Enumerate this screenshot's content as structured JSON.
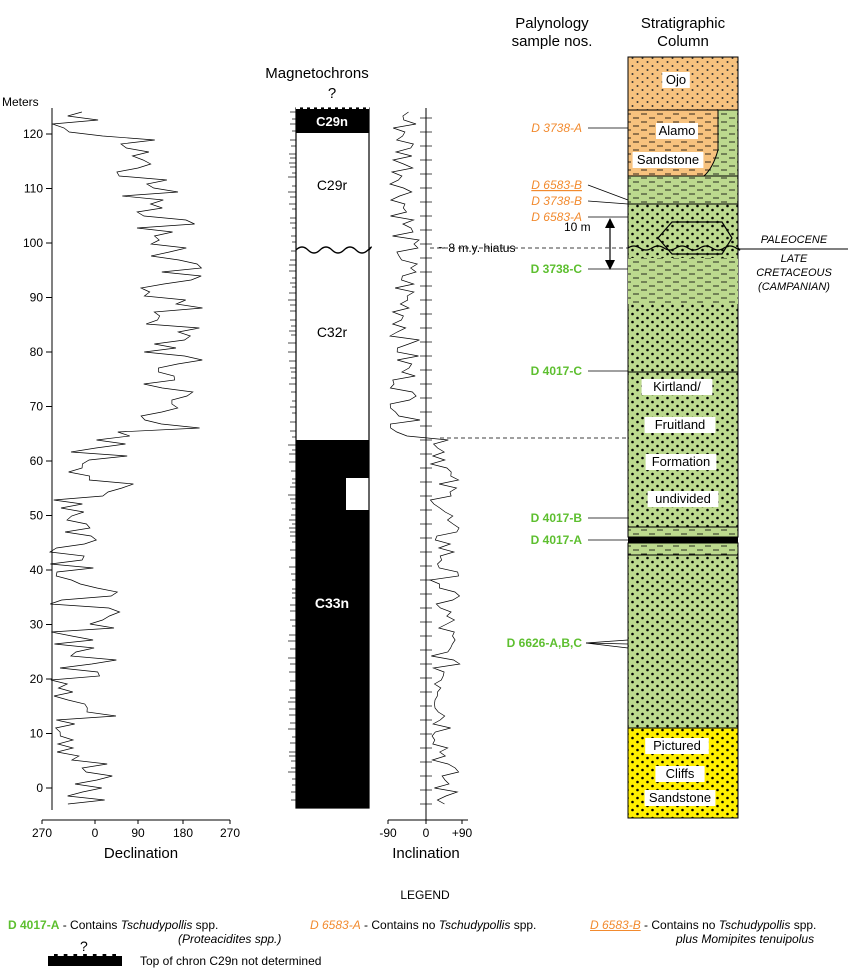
{
  "axis": {
    "meters_label": "Meters",
    "meter_ticks": [
      "120",
      "110",
      "100",
      "90",
      "80",
      "70",
      "60",
      "50",
      "40",
      "30",
      "20",
      "10",
      "0"
    ]
  },
  "declination": {
    "label": "Declination",
    "ticks": [
      "270",
      "0",
      "90",
      "180",
      "270"
    ]
  },
  "inclination": {
    "label": "Inclination",
    "ticks": [
      "-90",
      "0",
      "+90"
    ]
  },
  "magnetochrons": {
    "title": "Magnetochrons",
    "question": "?",
    "chrons": [
      {
        "name": "C29n",
        "polarity": "normal"
      },
      {
        "name": "C29r",
        "polarity": "reversed"
      },
      {
        "name": "C32r",
        "polarity": "reversed"
      },
      {
        "name": "C33n",
        "polarity": "normal"
      }
    ]
  },
  "palynology": {
    "title_line1": "Palynology",
    "title_line2": "sample nos.",
    "samples": [
      {
        "id": "D 3738-A",
        "style": "orange"
      },
      {
        "id": "D 6583-B",
        "style": "orange-underline"
      },
      {
        "id": "D 3738-B",
        "style": "orange"
      },
      {
        "id": "D 6583-A",
        "style": "orange"
      },
      {
        "id": "D 3738-C",
        "style": "green"
      },
      {
        "id": "D 4017-C",
        "style": "green"
      },
      {
        "id": "D 4017-B",
        "style": "green"
      },
      {
        "id": "D 4017-A",
        "style": "green"
      },
      {
        "id": "D 6626-A,B,C",
        "style": "green"
      }
    ]
  },
  "column": {
    "title_line1": "Stratigraphic",
    "title_line2": "Column",
    "units": [
      "Ojo",
      "Alamo",
      "Sandstone",
      "Kirtland/",
      "Fruitland",
      "Formation",
      "undivided",
      "Pictured",
      "Cliffs",
      "Sandstone"
    ]
  },
  "annotations": {
    "ten_m": "10 m",
    "hiatus": "~ 8 m.y. hiatus",
    "paleocene": "PALEOCENE",
    "late": "LATE",
    "cretaceous": "CRETACEOUS",
    "campanian": "(CAMPANIAN)"
  },
  "colors": {
    "green_unit": "#bcd98e",
    "orange_unit": "#f7c27e",
    "yellow_unit": "#ffef00",
    "green_text": "#5dbf2f",
    "orange_text": "#f28a2e"
  },
  "legend": {
    "title": "LEGEND",
    "item1": {
      "id": "D 4017-A",
      "text1": " - Contains ",
      "taxon": "Tschudypollis",
      "text2": " spp.",
      "line2": "(Proteacidites spp.)"
    },
    "item2": {
      "id": "D 6583-A",
      "text1": " - Contains no ",
      "taxon": "Tschudypollis",
      "text2": " spp."
    },
    "item3": {
      "id": "D 6583-B",
      "text1": " - Contains no ",
      "taxon": "Tschudypollis",
      "text2": " spp.",
      "line2": "plus Momipites tenuipolus"
    },
    "question": "?",
    "top_chron": "Top of chron C29n not determined"
  }
}
